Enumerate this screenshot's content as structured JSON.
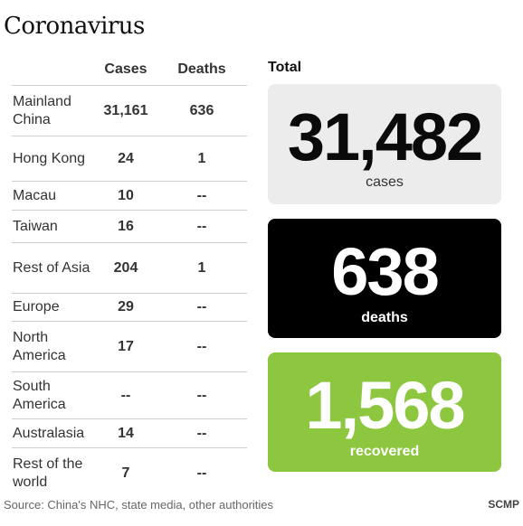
{
  "title": "Coronavirus",
  "table": {
    "headers": {
      "cases": "Cases",
      "deaths": "Deaths"
    },
    "rows": [
      {
        "region": "Mainland China",
        "cases": "31,161",
        "deaths": "636"
      },
      {
        "region": "Hong Kong",
        "cases": "24",
        "deaths": "1"
      },
      {
        "region": "Macau",
        "cases": "10",
        "deaths": "--"
      },
      {
        "region": "Taiwan",
        "cases": "16",
        "deaths": "--"
      },
      {
        "region": "Rest of Asia",
        "cases": "204",
        "deaths": "1"
      },
      {
        "region": "Europe",
        "cases": "29",
        "deaths": "--"
      },
      {
        "region": "North America",
        "cases": "17",
        "deaths": "--"
      },
      {
        "region": "South America",
        "cases": "--",
        "deaths": "--"
      },
      {
        "region": "Australasia",
        "cases": "14",
        "deaths": "--"
      },
      {
        "region": "Rest of the world",
        "cases": "7",
        "deaths": "--"
      }
    ]
  },
  "totals": {
    "label": "Total",
    "cases": {
      "value": "31,482",
      "label": "cases",
      "color": "#ececec"
    },
    "deaths": {
      "value": "638",
      "label": "deaths",
      "color": "#000000"
    },
    "recovered": {
      "value": "1,568",
      "label": "recovered",
      "color": "#8dc63f"
    }
  },
  "footer": {
    "source": "Source: China's NHC, state media, other authorities",
    "brand": "SCMP"
  }
}
